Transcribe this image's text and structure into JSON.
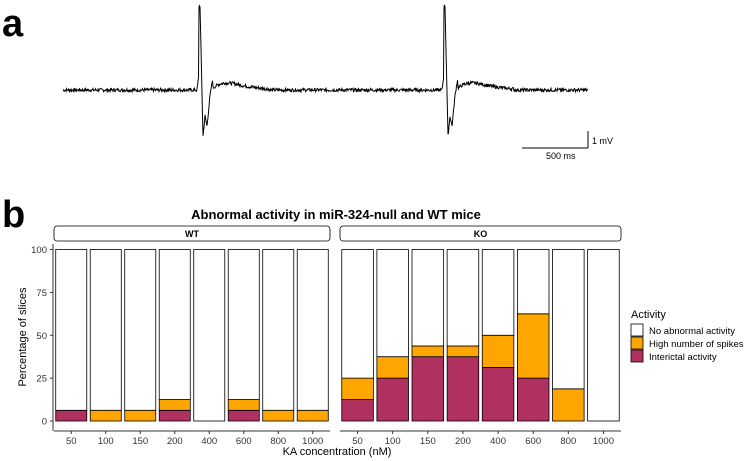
{
  "panel_a": {
    "label": "a",
    "scale_voltage": "1 mV",
    "scale_time": "500 ms"
  },
  "panel_b": {
    "label": "b"
  },
  "colors": {
    "none": "#ffffff",
    "high": "#FFA500",
    "interictal": "#B03060",
    "outline": "#000000"
  },
  "chart_data": {
    "type": "bar",
    "stacked": true,
    "title": "Abnormal activity in miR-324-null and WT mice",
    "xlabel": "KA concentration (nM)",
    "ylabel": "Percentage of slices",
    "ylim": [
      0,
      100
    ],
    "yticks": [
      "0",
      "25",
      "50",
      "75",
      "100"
    ],
    "categories": [
      "50",
      "100",
      "150",
      "200",
      "400",
      "600",
      "800",
      "1000"
    ],
    "legend": {
      "title": "Activity",
      "placement": "right",
      "entries": [
        "No abnormal activity",
        "High number of spikes",
        "Interictal activity"
      ]
    },
    "facets": [
      {
        "name": "WT",
        "series": [
          {
            "name": "Interictal activity",
            "values": [
              6.25,
              0,
              0,
              6.25,
              0,
              6.25,
              0,
              0
            ]
          },
          {
            "name": "High number of spikes",
            "values": [
              0,
              6.25,
              6.25,
              6.25,
              0,
              6.25,
              6.25,
              6.25
            ]
          },
          {
            "name": "No abnormal activity",
            "values": [
              93.75,
              93.75,
              93.75,
              87.5,
              100,
              87.5,
              93.75,
              93.75
            ]
          }
        ]
      },
      {
        "name": "KO",
        "series": [
          {
            "name": "Interictal activity",
            "values": [
              12.5,
              25,
              37.5,
              37.5,
              31.25,
              25,
              0,
              0
            ]
          },
          {
            "name": "High number of spikes",
            "values": [
              12.5,
              12.5,
              6.25,
              6.25,
              18.75,
              37.5,
              18.75,
              0
            ]
          },
          {
            "name": "No abnormal activity",
            "values": [
              75,
              62.5,
              56.25,
              56.25,
              50,
              37.5,
              81.25,
              100
            ]
          }
        ]
      }
    ]
  }
}
